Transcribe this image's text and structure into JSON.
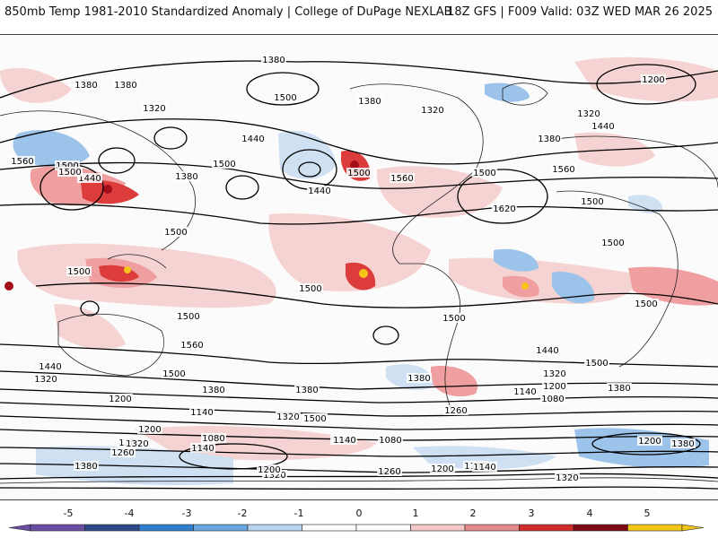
{
  "header": {
    "title_left": "850mb Temp 1981-2010 Standardized Anomaly | College of DuPage NEXLAB",
    "title_right": "18Z GFS | F009 Valid: 03Z WED MAR 26 2025"
  },
  "map": {
    "contour_labels": [
      "1380",
      "1380",
      "1380",
      "1320",
      "1500",
      "1380",
      "1320",
      "1200",
      "1440",
      "1320",
      "1380",
      "1440",
      "1500",
      "1560",
      "1500",
      "1440",
      "1500",
      "1380",
      "1500",
      "1560",
      "1440",
      "1560",
      "1500",
      "1620",
      "1500",
      "1500",
      "1500",
      "1500",
      "1500",
      "1500",
      "1500",
      "1500",
      "1560",
      "1440",
      "1320",
      "1500",
      "1440",
      "1500",
      "1380",
      "1320",
      "1380",
      "1380",
      "1260",
      "1200",
      "1140",
      "1380",
      "1140",
      "1200",
      "1080",
      "1200",
      "1140",
      "1080",
      "1320",
      "1500",
      "1260",
      "1140",
      "1080",
      "1140",
      "1200",
      "1260",
      "1320",
      "1380",
      "1320",
      "1380",
      "1200",
      "1140",
      "1260",
      "1200",
      "1140",
      "1320"
    ],
    "colors": {
      "ocean_bg": "#fbfbfb",
      "warm_1": "#f6d3d3",
      "warm_2": "#ef9f9f",
      "warm_3": "#dc3c3c",
      "warm_4": "#a30e1a",
      "warm_5": "#f5c518",
      "cold_1": "#cfe0f3",
      "cold_2": "#9cc3ea",
      "cold_3": "#3b7fd4",
      "contour": "#000000",
      "coast": "#222222"
    }
  },
  "colorbar": {
    "ticks": [
      "-5",
      "-4",
      "-3",
      "-2",
      "-1",
      "0",
      "1",
      "2",
      "3",
      "4",
      "5"
    ],
    "segments": [
      "#6a4ea3",
      "#2f4a8a",
      "#2f7fd0",
      "#6aa7e0",
      "#b6d3f0",
      "#ffffff",
      "#ffffff",
      "#f4c8c8",
      "#e58a8a",
      "#cf2b2b",
      "#7e0a14",
      "#f3c518"
    ]
  }
}
